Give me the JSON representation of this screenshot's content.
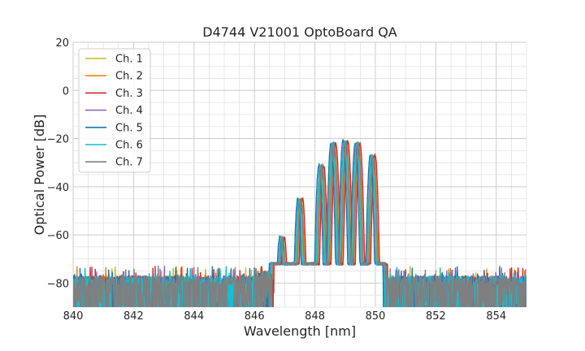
{
  "chart_data": {
    "type": "line",
    "title": "D4744 V21001 OptoBoard QA",
    "xlabel": "Wavelength [nm]",
    "ylabel": "Optical Power [dB]",
    "xlim": [
      840,
      855
    ],
    "ylim": [
      -90,
      20
    ],
    "xticks": [
      840,
      842,
      844,
      846,
      848,
      850,
      852,
      854
    ],
    "yticks": [
      20,
      0,
      -20,
      -40,
      -60,
      -80
    ],
    "grid": true,
    "legend": "top-left",
    "noise_floor_db": -80,
    "peaks_nm": [
      846.9,
      847.5,
      848.2,
      848.6,
      849.0,
      849.4,
      849.9
    ],
    "peak_levels_db": [
      -61,
      -45,
      -31,
      -22,
      -21,
      -22,
      -27
    ],
    "series": [
      {
        "name": "Ch. 1",
        "color": "#bcbd22",
        "shift_nm": 0.0
      },
      {
        "name": "Ch. 2",
        "color": "#ff7f0e",
        "shift_nm": 0.05
      },
      {
        "name": "Ch. 3",
        "color": "#d62728",
        "shift_nm": 0.09
      },
      {
        "name": "Ch. 4",
        "color": "#9467bd",
        "shift_nm": -0.03
      },
      {
        "name": "Ch. 5",
        "color": "#1f77b4",
        "shift_nm": -0.07
      },
      {
        "name": "Ch. 6",
        "color": "#17becf",
        "shift_nm": -0.02
      },
      {
        "name": "Ch. 7",
        "color": "#7f7f7f",
        "shift_nm": 0.03
      }
    ]
  }
}
